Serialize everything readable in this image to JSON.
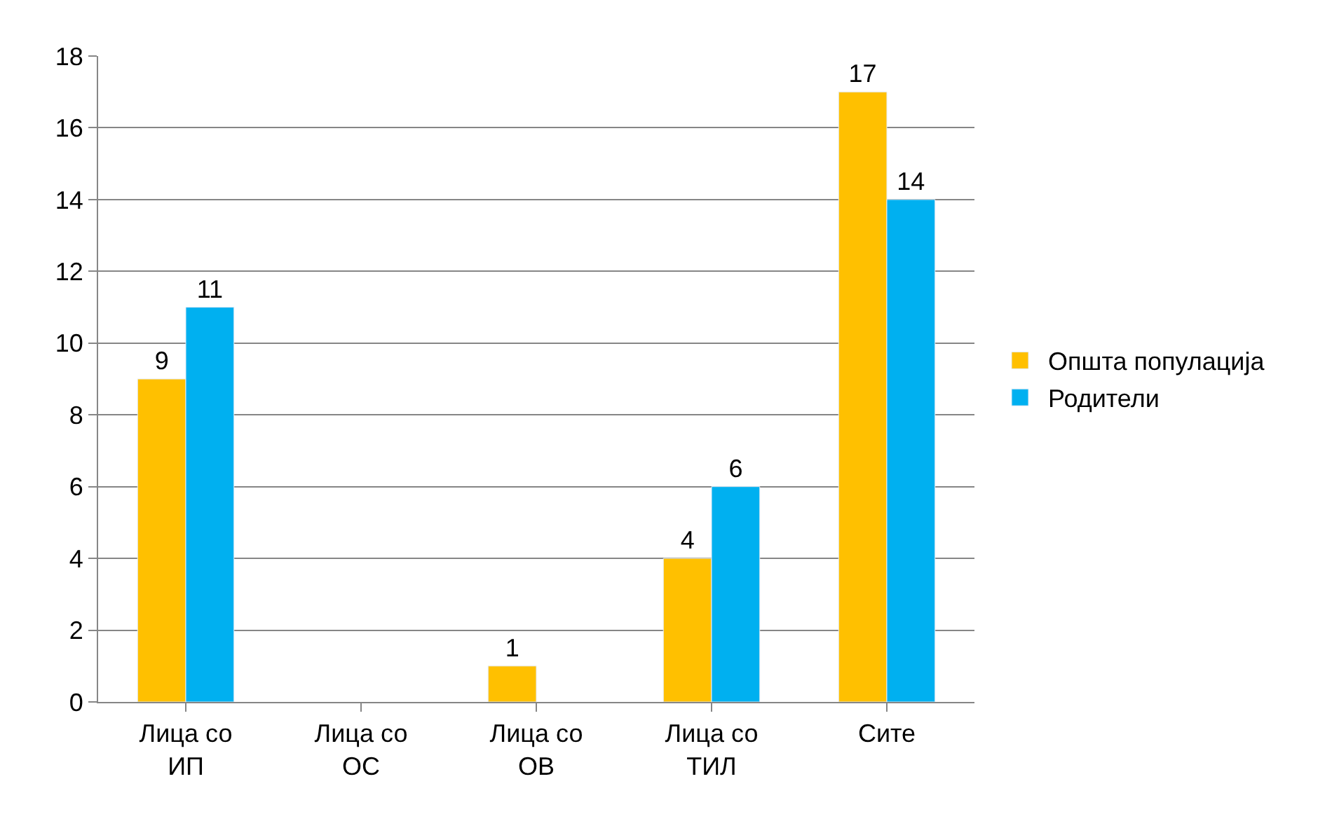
{
  "chart_data": {
    "type": "bar",
    "categories": [
      "Лица со ИП",
      "Лица со ОС",
      "Лица со ОВ",
      "Лица со ТИЛ",
      "Сите"
    ],
    "series": [
      {
        "name": "Општа популација",
        "color": "#ffc000",
        "values": [
          9,
          null,
          1,
          4,
          17
        ]
      },
      {
        "name": "Родители",
        "color": "#00b0f0",
        "values": [
          11,
          null,
          null,
          6,
          14
        ]
      }
    ],
    "ylim": [
      0,
      18
    ],
    "yticks": [
      0,
      2,
      4,
      6,
      8,
      10,
      12,
      14,
      16,
      18
    ],
    "grid": "y",
    "legend": "right",
    "data_labels": true
  }
}
